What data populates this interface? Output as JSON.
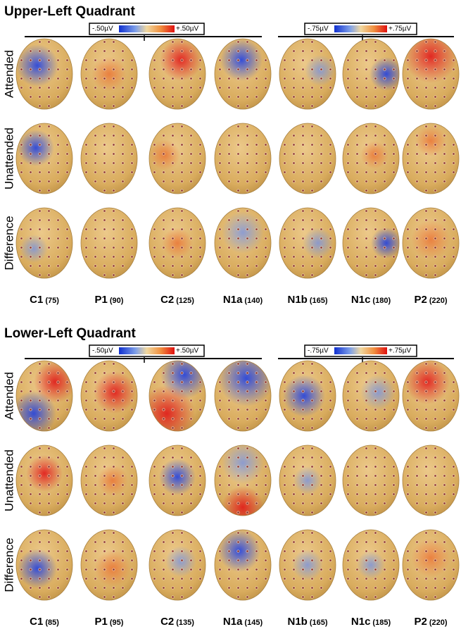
{
  "panels": [
    {
      "title": "Upper-Left Quadrant",
      "scales": [
        {
          "min_label": "-.50µV",
          "max_label": "+.50µV"
        },
        {
          "min_label": "-.75µV",
          "max_label": "+.75µV"
        }
      ],
      "rows": [
        "Attended",
        "Unattended",
        "Difference"
      ],
      "columns": [
        {
          "name": "C1",
          "latency": "(75)"
        },
        {
          "name": "P1",
          "latency": "(90)"
        },
        {
          "name": "C2",
          "latency": "(125)"
        },
        {
          "name": "N1a",
          "latency": "(140)"
        },
        {
          "name": "N1b",
          "latency": "(165)"
        },
        {
          "name": "N1c",
          "latency": "(180)"
        },
        {
          "name": "P2",
          "latency": "(220)"
        }
      ]
    },
    {
      "title": "Lower-Left Quadrant",
      "scales": [
        {
          "min_label": "-.50µV",
          "max_label": "+.50µV"
        },
        {
          "min_label": "-.75µV",
          "max_label": "+.75µV"
        }
      ],
      "rows": [
        "Attended",
        "Unattended",
        "Difference"
      ],
      "columns": [
        {
          "name": "C1",
          "latency": "(85)"
        },
        {
          "name": "P1",
          "latency": "(95)"
        },
        {
          "name": "C2",
          "latency": "(135)"
        },
        {
          "name": "N1a",
          "latency": "(145)"
        },
        {
          "name": "N1b",
          "latency": "(165)"
        },
        {
          "name": "N1c",
          "latency": "(185)"
        },
        {
          "name": "P2",
          "latency": "(220)"
        }
      ]
    }
  ]
}
